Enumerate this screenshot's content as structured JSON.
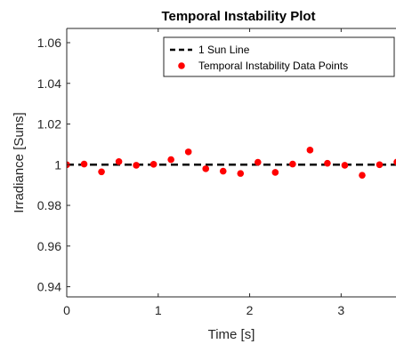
{
  "chart_data": {
    "type": "scatter",
    "title": "Temporal Instability Plot",
    "xlabel": "Time [s]",
    "ylabel": "Irradiance [Suns]",
    "xlim": [
      0,
      3.6
    ],
    "ylim": [
      0.935,
      1.067
    ],
    "xticks": [
      0,
      1,
      2,
      3
    ],
    "xtick_labels": [
      "0",
      "1",
      "2",
      "3"
    ],
    "yticks": [
      0.94,
      0.96,
      0.98,
      1.0,
      1.02,
      1.04,
      1.06
    ],
    "ytick_labels": [
      "0.94",
      "0.96",
      "0.98",
      "1",
      "1.02",
      "1.04",
      "1.06"
    ],
    "grid": false,
    "legend_location": "top-right",
    "series": [
      {
        "name": "1 Sun Line",
        "kind": "line",
        "style": "dashed",
        "color": "#000000",
        "x": [
          0,
          3.6
        ],
        "y": [
          1.0,
          1.0
        ]
      },
      {
        "name": "Temporal Instability Data Points",
        "kind": "scatter",
        "color": "#ff0000",
        "x": [
          0.0,
          0.19,
          0.38,
          0.57,
          0.76,
          0.95,
          1.14,
          1.33,
          1.52,
          1.71,
          1.9,
          2.09,
          2.28,
          2.47,
          2.66,
          2.85,
          3.04,
          3.23,
          3.42,
          3.61
        ],
        "y": [
          1.0,
          1.0003,
          0.9965,
          1.0015,
          0.9997,
          1.0002,
          1.0025,
          1.0063,
          0.998,
          0.9968,
          0.9957,
          1.0012,
          0.9962,
          1.0003,
          1.0072,
          1.0007,
          0.9997,
          0.9948,
          1.0,
          1.0013
        ]
      }
    ]
  }
}
